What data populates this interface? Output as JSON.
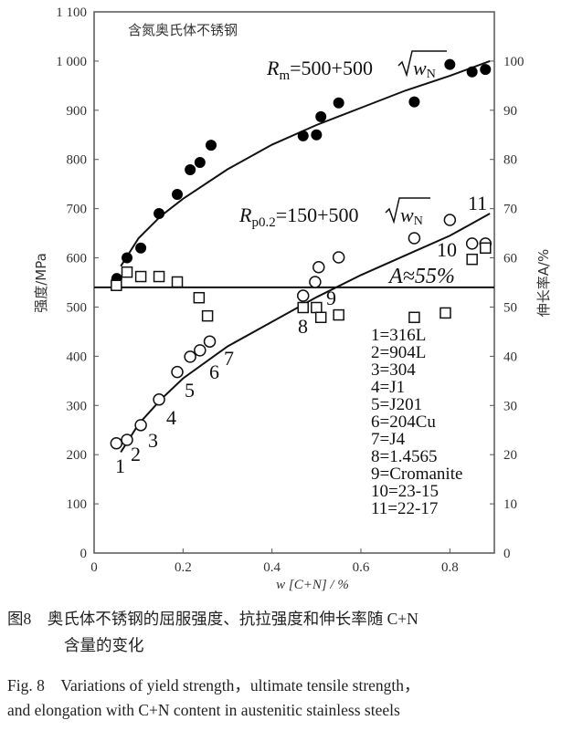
{
  "chart_data": {
    "type": "scatter",
    "title": "含氮奥氏体不锈钢",
    "xlabel": "w [C+N] / %",
    "ylabel": "强度/MPa",
    "y2label": "伸长率A/%",
    "xlim": [
      0,
      0.9
    ],
    "ylim": [
      0,
      1100
    ],
    "y2lim": [
      0,
      110
    ],
    "grid": false,
    "x_ticks": [
      "0",
      "0.2",
      "0.4",
      "0.6",
      "0.8"
    ],
    "y_ticks": [
      "0",
      "100",
      "200",
      "300",
      "400",
      "500",
      "600",
      "700",
      "800",
      "900",
      "1 000",
      "1 100"
    ],
    "y2_ticks": [
      "0",
      "10",
      "20",
      "30",
      "40",
      "50",
      "60",
      "70",
      "80",
      "90",
      "100"
    ],
    "series": [
      {
        "name": "Rm",
        "marker": "filled-circle",
        "axis": "left",
        "x": [
          0.051,
          0.074,
          0.105,
          0.146,
          0.187,
          0.216,
          0.238,
          0.263,
          0.47,
          0.5,
          0.51,
          0.55,
          0.72,
          0.8,
          0.85,
          0.88
        ],
        "y": [
          558,
          600,
          620,
          690,
          729,
          779,
          794,
          829,
          848,
          850,
          887,
          915,
          917,
          993,
          978,
          983
        ]
      },
      {
        "name": "Rp0.2",
        "marker": "open-circle",
        "axis": "left",
        "x": [
          0.05,
          0.074,
          0.105,
          0.146,
          0.187,
          0.216,
          0.238,
          0.26,
          0.47,
          0.497,
          0.505,
          0.55,
          0.72,
          0.8,
          0.85,
          0.88
        ],
        "y": [
          223,
          230,
          260,
          312,
          368,
          399,
          412,
          430,
          523,
          551,
          581,
          601,
          640,
          677,
          629,
          629
        ]
      },
      {
        "name": "A",
        "marker": "open-square",
        "axis": "right",
        "x": [
          0.05,
          0.074,
          0.105,
          0.146,
          0.187,
          0.236,
          0.255,
          0.47,
          0.5,
          0.51,
          0.55,
          0.72,
          0.79,
          0.85,
          0.88
        ],
        "y": [
          54.4,
          57.1,
          56.2,
          56.2,
          55.1,
          51.9,
          48.2,
          49.9,
          49.9,
          47.9,
          48.4,
          47.9,
          48.8,
          59.7,
          62.0
        ]
      }
    ],
    "fits": [
      {
        "label_main": "R",
        "label_sub": "m",
        "label_rest": "=500+500",
        "label_root": "w",
        "label_root_sub": "N",
        "x": [
          0.06,
          0.1,
          0.15,
          0.2,
          0.3,
          0.4,
          0.5,
          0.6,
          0.7,
          0.8,
          0.89
        ],
        "y": [
          583,
          640,
          685,
          720,
          780,
          830,
          870,
          905,
          940,
          970,
          1000
        ]
      },
      {
        "label_main": "R",
        "label_sub": "p0.2",
        "label_rest": "=150+500",
        "label_root": "w",
        "label_root_sub": "N",
        "x": [
          0.06,
          0.1,
          0.15,
          0.2,
          0.3,
          0.4,
          0.5,
          0.6,
          0.7,
          0.8,
          0.89
        ],
        "y": [
          205,
          262,
          312,
          355,
          420,
          470,
          520,
          565,
          605,
          645,
          690
        ]
      }
    ],
    "hline": {
      "label": "A≈55%",
      "value": 54
    },
    "point_labels": [
      "1",
      "2",
      "3",
      "4",
      "5",
      "6",
      "7",
      "8",
      "9",
      "10",
      "11"
    ],
    "legend": [
      "1=316L",
      "2=904L",
      "3=304",
      "4=J1",
      "5=J201",
      "6=204Cu",
      "7=J4",
      "8=1.4565",
      "9=Cromanite",
      "10=23-15",
      "11=22-17"
    ]
  },
  "caption": {
    "cn_line1": "图8　奥氏体不锈钢的屈服强度、抗拉强度和伸长率随 C+N",
    "cn_line2": "含量的变化",
    "en_line1": "Fig. 8　Variations of yield strength，ultimate tensile strength，",
    "en_line2": "and elongation with C+N content in austenitic stainless steels"
  }
}
